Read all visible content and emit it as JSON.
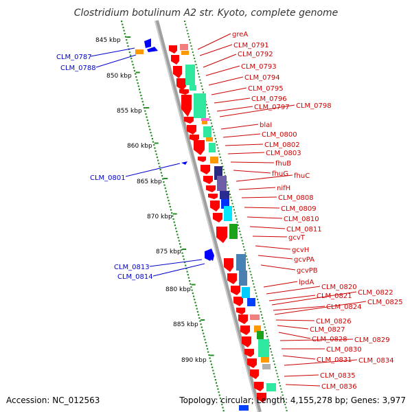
{
  "header": {
    "title": "Clostridium botulinum A2 str. Kyoto, complete genome"
  },
  "footer": {
    "accession": "Accession: NC_012563",
    "summary": "Topology: circular; Length: 4,155,278 bp; Genes: 3,977"
  },
  "scale": {
    "ticks": [
      "845 kbp",
      "850 kbp",
      "855 kbp",
      "860 kbp",
      "865 kbp",
      "870 kbp",
      "875 kbp",
      "880 kbp",
      "885 kbp",
      "890 kbp"
    ]
  },
  "colors": {
    "forward_label": "#cc0000",
    "reverse_label": "#0000cc",
    "forward_gene": "#ff0000",
    "reverse_gene": "#0000ff",
    "ruler_dots": "#228b22",
    "backbone": "#999999"
  },
  "labels": {
    "left": [
      "CLM_0787",
      "CLM_0788",
      "CLM_0801",
      "CLM_0813",
      "CLM_0814"
    ],
    "right": [
      "greA",
      "CLM_0791",
      "CLM_0792",
      "CLM_0793",
      "CLM_0794",
      "CLM_0795",
      "CLM_0796",
      "CLM_0797",
      "CLM_0798",
      "blaI",
      "CLM_0800",
      "CLM_0802",
      "CLM_0803",
      "fhuB",
      "fhuG",
      "fhuC",
      "nifH",
      "CLM_0808",
      "CLM_0809",
      "CLM_0810",
      "CLM_0811",
      "gcvT",
      "gcvH",
      "gcvPA",
      "gcvPB",
      "lpdA",
      "CLM_0820",
      "CLM_0821",
      "CLM_0822",
      "CLM_0824",
      "CLM_0825",
      "CLM_0826",
      "CLM_0827",
      "CLM_0828",
      "CLM_0829",
      "CLM_0830",
      "CLM_0831",
      "CLM_0834",
      "CLM_0835",
      "CLM_0836"
    ]
  }
}
